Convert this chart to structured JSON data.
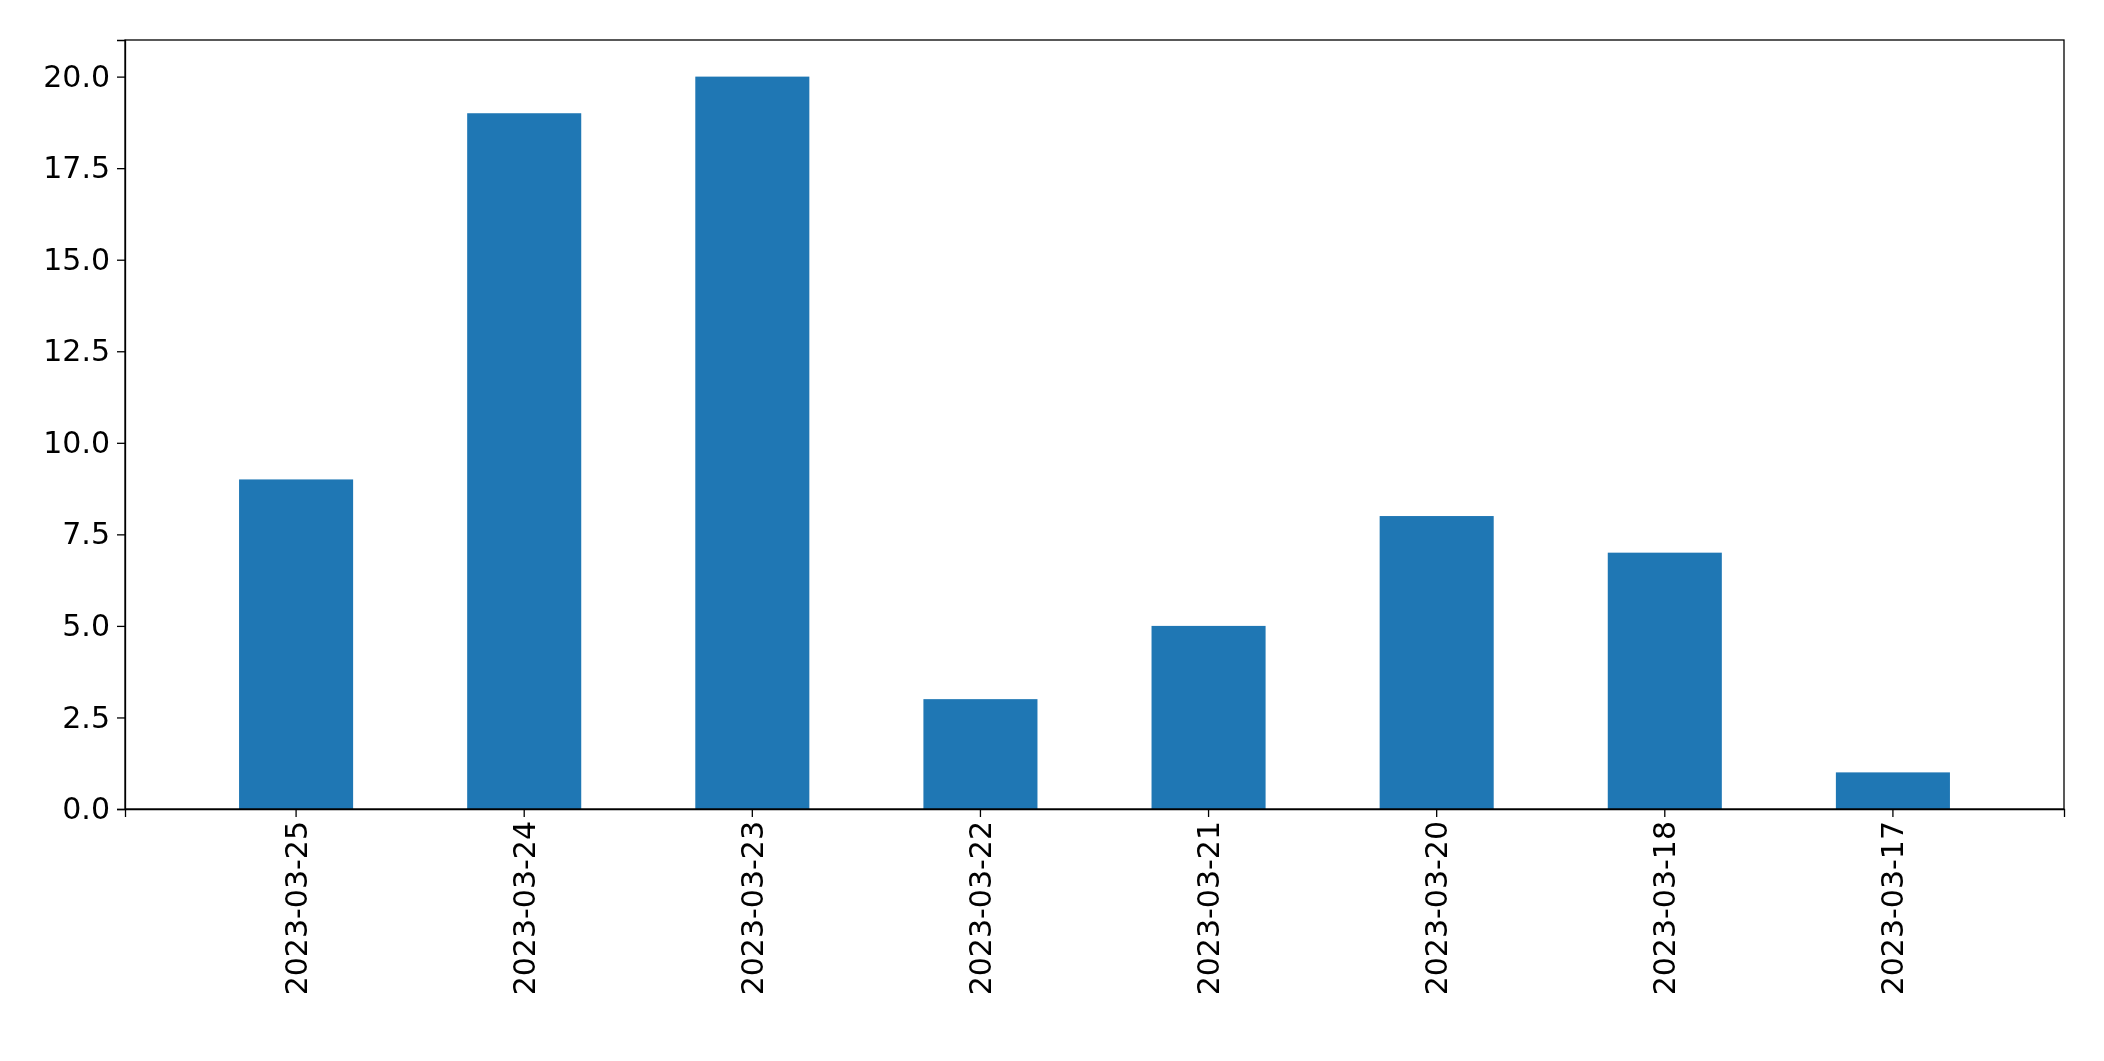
{
  "chart_data": {
    "type": "bar",
    "categories": [
      "2023-03-25",
      "2023-03-24",
      "2023-03-23",
      "2023-03-22",
      "2023-03-21",
      "2023-03-20",
      "2023-03-18",
      "2023-03-17"
    ],
    "values": [
      9,
      19,
      20,
      3,
      5,
      8,
      7,
      1
    ],
    "color": "#1f77b4",
    "ylim": [
      0,
      21
    ],
    "yticks": [
      {
        "value": 0,
        "label": "0.0"
      },
      {
        "value": 2.5,
        "label": "2.5"
      },
      {
        "value": 5,
        "label": "5.0"
      },
      {
        "value": 7.5,
        "label": "7.5"
      },
      {
        "value": 10,
        "label": "10.0"
      },
      {
        "value": 12.5,
        "label": "12.5"
      },
      {
        "value": 15,
        "label": "15.0"
      },
      {
        "value": 17.5,
        "label": "17.5"
      },
      {
        "value": 20,
        "label": "20.0"
      }
    ]
  }
}
